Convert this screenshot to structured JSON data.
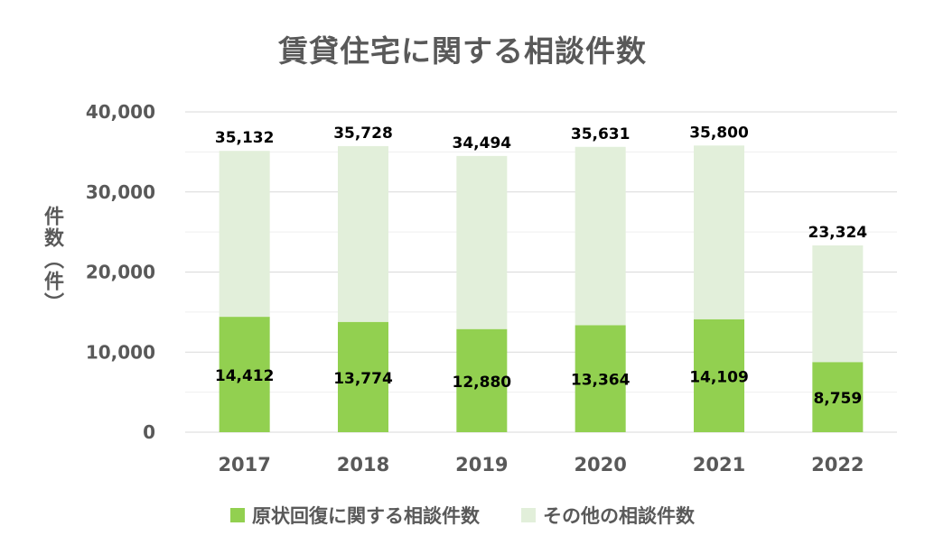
{
  "chart_data": {
    "type": "bar",
    "stacked": true,
    "title": "賃貸住宅に関する相談件数",
    "ylabel": "件数（件）",
    "xlabel": "",
    "categories": [
      "2017",
      "2018",
      "2019",
      "2020",
      "2021",
      "2022"
    ],
    "series": [
      {
        "name": "原状回復に関する相談件数",
        "color": "#92D050",
        "values": [
          14412,
          13774,
          12880,
          13364,
          14109,
          8759
        ],
        "labels": [
          "14,412",
          "13,774",
          "12,880",
          "13,364",
          "14,109",
          "8,759"
        ]
      },
      {
        "name": "その他の相談件数",
        "color": "#E2EFDA",
        "values": [
          20720,
          21954,
          21614,
          22267,
          21691,
          14565
        ]
      }
    ],
    "totals": [
      35132,
      35728,
      34494,
      35631,
      35800,
      23324
    ],
    "total_labels": [
      "35,132",
      "35,728",
      "34,494",
      "35,631",
      "35,800",
      "23,324"
    ],
    "ylim": [
      0,
      40000
    ],
    "yticks": [
      0,
      10000,
      20000,
      30000,
      40000
    ],
    "ytick_labels": [
      "0",
      "10,000",
      "20,000",
      "30,000",
      "40,000"
    ],
    "grid": true,
    "legend_position": "bottom"
  }
}
